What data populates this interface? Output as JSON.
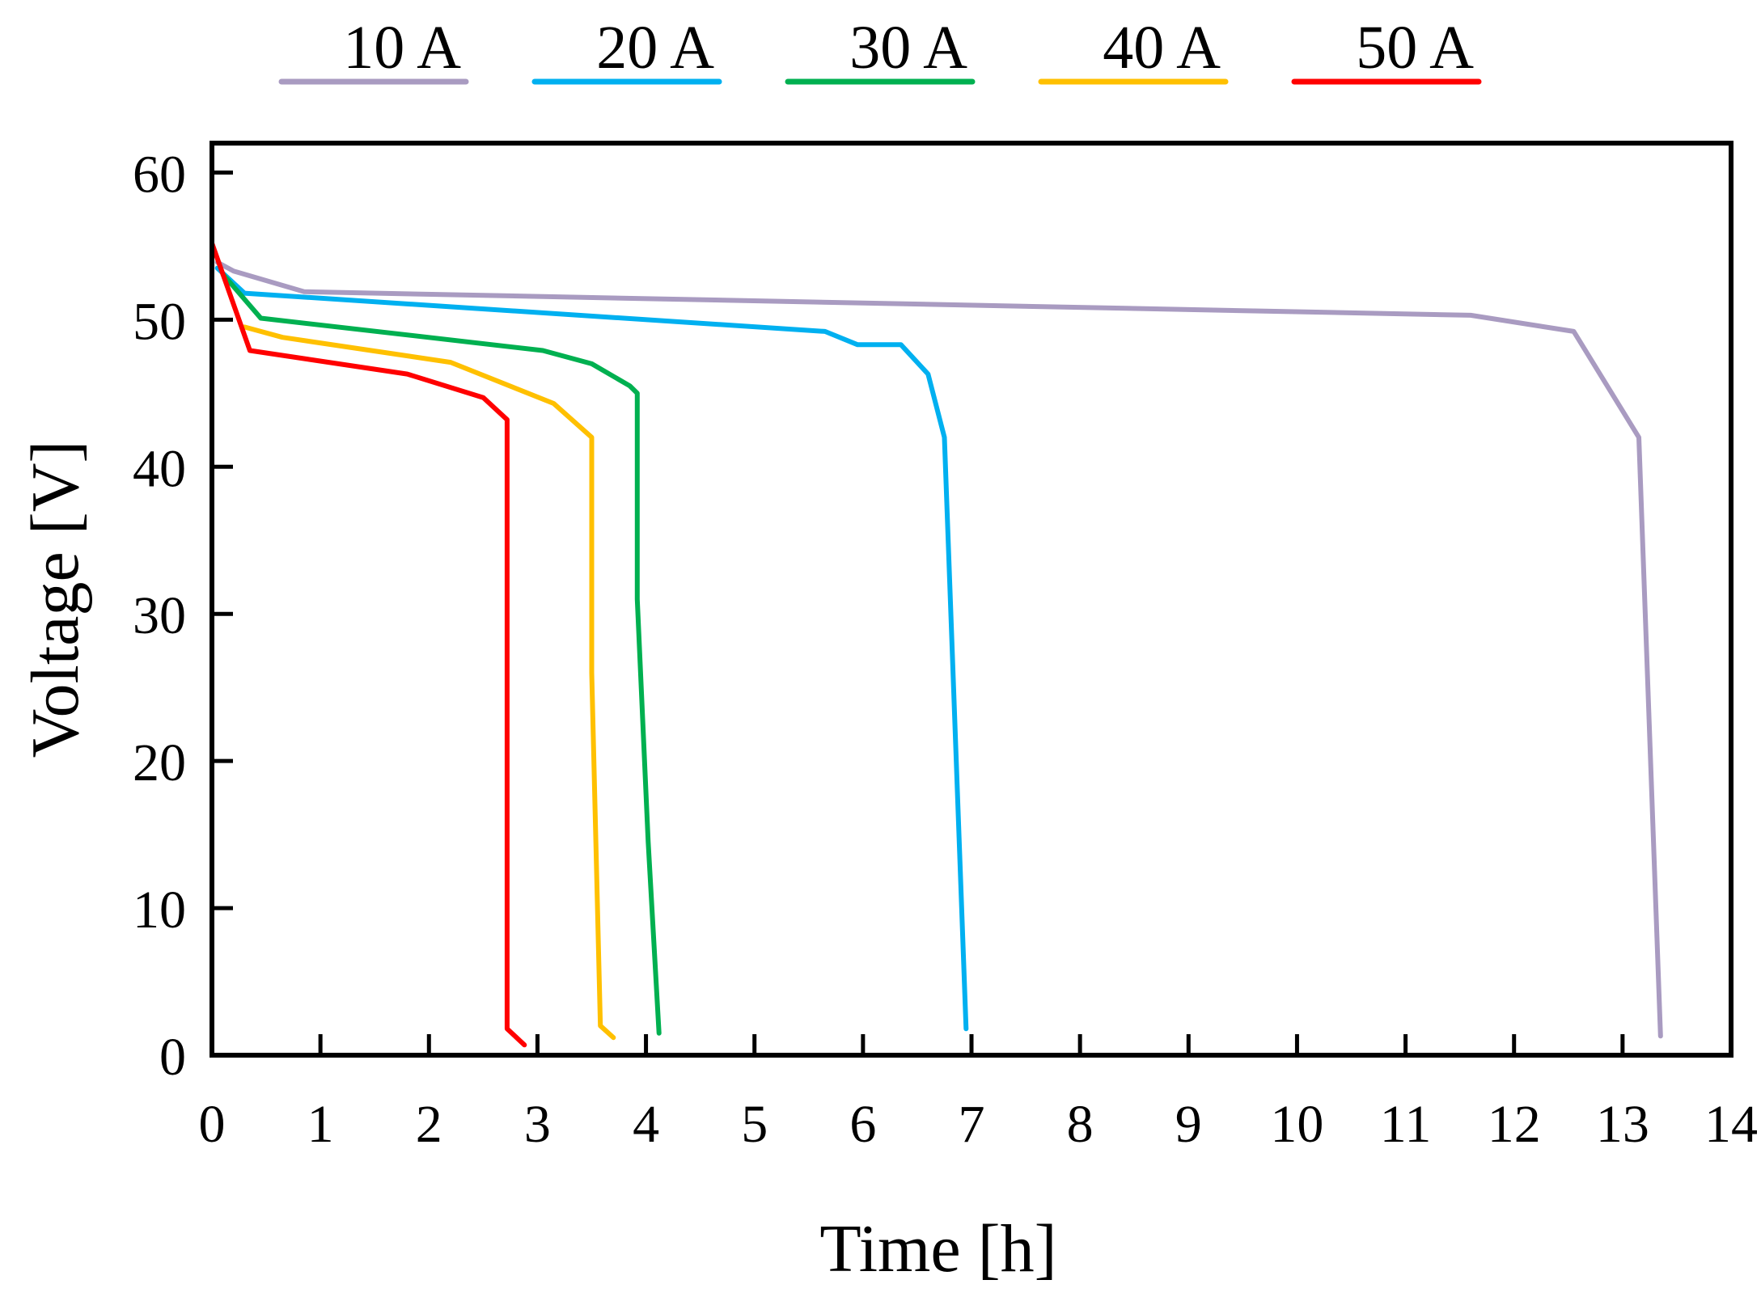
{
  "chart_data": {
    "type": "line",
    "title": "",
    "xlabel": "Time [h]",
    "ylabel": "Voltage [V]",
    "xlim": [
      0,
      14
    ],
    "ylim": [
      0,
      62
    ],
    "xticks": [
      0,
      1,
      2,
      3,
      4,
      5,
      6,
      7,
      8,
      9,
      10,
      11,
      12,
      13,
      14
    ],
    "yticks": [
      0,
      10,
      20,
      30,
      40,
      50,
      60
    ],
    "grid": false,
    "legend_position": "top",
    "series": [
      {
        "name": "10 A",
        "color": "#a99bc1",
        "x": [
          0.05,
          0.2,
          0.85,
          11.6,
          12.55,
          13.15,
          13.35
        ],
        "y": [
          53.9,
          53.3,
          51.9,
          50.3,
          49.2,
          42.0,
          1.3
        ]
      },
      {
        "name": "20 A",
        "color": "#00b0f0",
        "x": [
          0.05,
          0.3,
          5.65,
          5.95,
          6.35,
          6.6,
          6.75,
          6.95
        ],
        "y": [
          53.5,
          51.8,
          49.2,
          48.3,
          48.3,
          46.3,
          42.0,
          1.8
        ]
      },
      {
        "name": "30 A",
        "color": "#00b050",
        "x": [
          0.1,
          0.45,
          3.05,
          3.5,
          3.85,
          3.92,
          3.92,
          4.02,
          4.12
        ],
        "y": [
          53.1,
          50.1,
          47.9,
          47.0,
          45.5,
          45.0,
          31.0,
          14.5,
          1.5
        ]
      },
      {
        "name": "40 A",
        "color": "#ffc000",
        "x": [
          0.3,
          0.65,
          2.2,
          3.15,
          3.5,
          3.5,
          3.58,
          3.7
        ],
        "y": [
          49.5,
          48.8,
          47.1,
          44.3,
          42.0,
          26.0,
          2.0,
          1.2
        ]
      },
      {
        "name": "50 A",
        "color": "#ff0000",
        "x": [
          0.0,
          0.35,
          1.8,
          2.5,
          2.72,
          2.72,
          2.88
        ],
        "y": [
          55.2,
          47.9,
          46.3,
          44.7,
          43.2,
          1.8,
          0.7
        ]
      }
    ]
  }
}
